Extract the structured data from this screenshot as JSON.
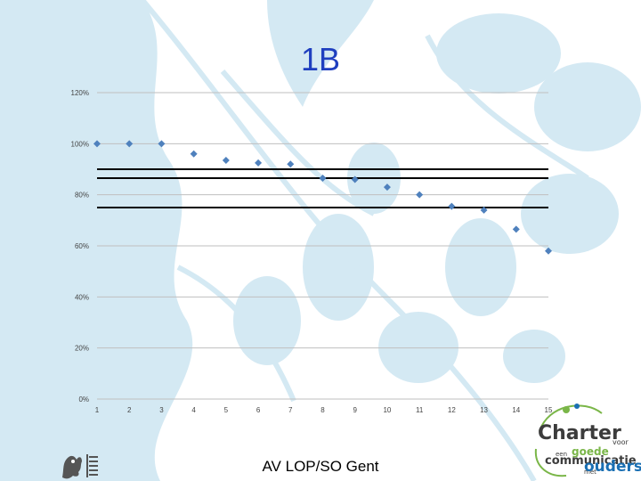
{
  "slide": {
    "title": "1B",
    "footer": "AV LOP/SO Gent"
  },
  "logo_right": {
    "line1": "Charter",
    "line2": "voor",
    "line3": "een",
    "line4": "goede",
    "line5": "communicatie",
    "line6": "met",
    "line7": "ouders"
  },
  "colors": {
    "title": "#1f3fbf",
    "marker": "#4f81bd",
    "gridline": "#bfbfbf",
    "refline": "#000000",
    "background_leaf": "#cfe6f1",
    "logo_dark": "#3c3c3c",
    "logo_blue": "#1a6fb3",
    "logo_green": "#7ab648"
  },
  "chart_data": {
    "type": "scatter",
    "x": [
      1,
      2,
      3,
      4,
      5,
      6,
      7,
      8,
      9,
      10,
      11,
      12,
      13,
      14,
      15
    ],
    "y": [
      1.0,
      1.0,
      1.0,
      0.96,
      0.935,
      0.925,
      0.92,
      0.865,
      0.86,
      0.83,
      0.8,
      0.755,
      0.74,
      0.665,
      0.58
    ],
    "xticks": [
      "1",
      "2",
      "3",
      "4",
      "5",
      "6",
      "7",
      "8",
      "9",
      "10",
      "11",
      "12",
      "13",
      "14",
      "15"
    ],
    "yticks": [
      {
        "value": 0.0,
        "label": "0%"
      },
      {
        "value": 0.2,
        "label": "20%"
      },
      {
        "value": 0.4,
        "label": "40%"
      },
      {
        "value": 0.6,
        "label": "60%"
      },
      {
        "value": 0.8,
        "label": "80%"
      },
      {
        "value": 1.0,
        "label": "100%"
      },
      {
        "value": 1.2,
        "label": "120%"
      }
    ],
    "xlim": [
      1,
      15
    ],
    "ylim": [
      0,
      1.2
    ],
    "reference_lines": [
      0.9,
      0.865,
      0.75
    ],
    "grid": true,
    "marker": "diamond",
    "title": "",
    "xlabel": "",
    "ylabel": ""
  }
}
